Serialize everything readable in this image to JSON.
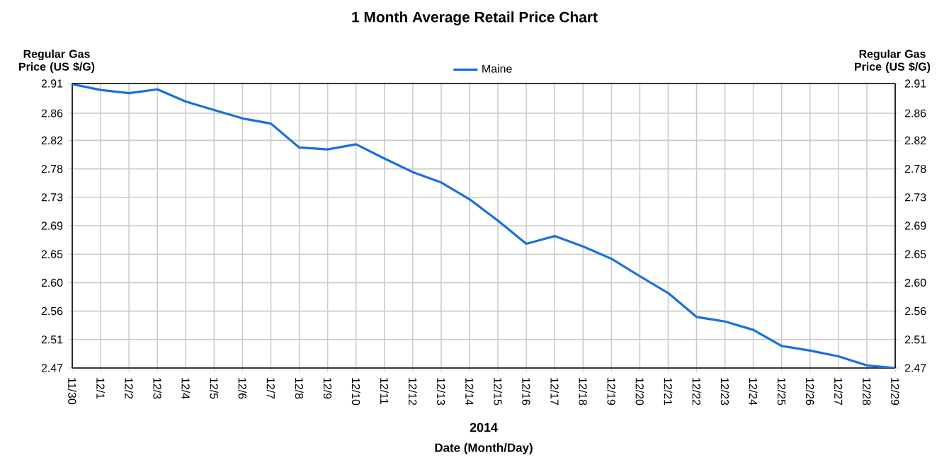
{
  "chart_data": {
    "type": "line",
    "title": "1 Month Average Retail Price Chart",
    "xlabel": "Date (Month/Day)",
    "ylabel": "Regular Gas Price (US $/G)",
    "y2label": "Regular Gas Price (US $/G)",
    "categories": [
      "11/30",
      "12/1",
      "12/2",
      "12/3",
      "12/4",
      "12/5",
      "12/6",
      "12/7",
      "12/8",
      "12/9",
      "12/10",
      "12/11",
      "12/12",
      "12/13",
      "12/14",
      "12/15",
      "12/16",
      "12/17",
      "12/18",
      "12/19",
      "12/20",
      "12/21",
      "12/22",
      "12/23",
      "12/24",
      "12/25",
      "12/26",
      "12/27",
      "12/28",
      "12/29"
    ],
    "series": [
      {
        "name": "Maine",
        "color": "#1a6fdf",
        "values": [
          2.909,
          2.9,
          2.895,
          2.901,
          2.882,
          2.869,
          2.856,
          2.848,
          2.811,
          2.808,
          2.816,
          2.794,
          2.773,
          2.757,
          2.731,
          2.698,
          2.662,
          2.674,
          2.658,
          2.639,
          2.612,
          2.586,
          2.549,
          2.542,
          2.529,
          2.504,
          2.497,
          2.488,
          2.474,
          2.47
        ]
      }
    ],
    "ylim": [
      2.47,
      2.91
    ],
    "yticks": [
      2.47,
      {
        "value": 2.514,
        "label": "2.51"
      },
      {
        "value": 2.558,
        "label": "2.56"
      },
      {
        "value": 2.602,
        "label": "2.60"
      },
      {
        "value": 2.646,
        "label": "2.65"
      },
      2.69,
      {
        "value": 2.734,
        "label": "2.73"
      },
      {
        "value": 2.778,
        "label": "2.78"
      },
      {
        "value": 2.822,
        "label": "2.82"
      },
      {
        "value": 2.864,
        "label": "2.86"
      },
      2.91
    ],
    "y2lim": [
      2.47,
      2.91
    ],
    "y2ticks": [
      2.47,
      {
        "value": 2.514,
        "label": "2.51"
      },
      {
        "value": 2.558,
        "label": "2.56"
      },
      {
        "value": 2.602,
        "label": "2.60"
      },
      {
        "value": 2.646,
        "label": "2.65"
      },
      2.69,
      {
        "value": 2.734,
        "label": "2.73"
      },
      {
        "value": 2.778,
        "label": "2.78"
      },
      {
        "value": 2.822,
        "label": "2.82"
      },
      {
        "value": 2.864,
        "label": "2.86"
      },
      2.91
    ],
    "annotations": [
      "2014"
    ],
    "grid": true,
    "legend": "top",
    "marker": "none",
    "line_style": "solid"
  }
}
